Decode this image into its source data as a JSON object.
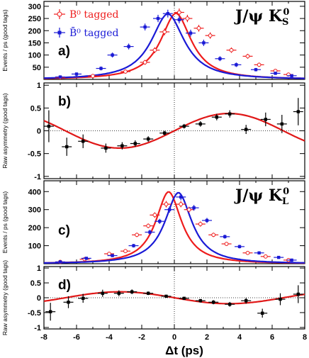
{
  "figure": {
    "xlabel": "Δt (ps)",
    "xticks": [
      -8,
      -6,
      -4,
      -2,
      0,
      2,
      4,
      6,
      8
    ]
  },
  "chart_data": [
    {
      "panel": "a)",
      "type": "scatter",
      "title": "J/ψ K_S^0",
      "channel_main": "J/ψ K",
      "channel_sub": "S",
      "channel_sup": "0",
      "ylabel": "Events / ps (good tags)",
      "xlim": [
        -8,
        8
      ],
      "ylim": [
        0,
        320
      ],
      "yticks": [
        50,
        100,
        150,
        200,
        250,
        300
      ],
      "legend": [
        {
          "label": "B⁰ tagged",
          "color": "#ee1c1c",
          "marker": "open-cross"
        },
        {
          "label": "B̄⁰ tagged",
          "color": "#1a1ad6",
          "marker": "filled-square"
        }
      ],
      "series": [
        {
          "name": "B⁰ tagged",
          "color": "#ee1c1c",
          "open": true,
          "points": [
            [
              -7,
              8,
              6
            ],
            [
              -5,
              14,
              6
            ],
            [
              -3,
              32,
              8
            ],
            [
              -1.8,
              70,
              10
            ],
            [
              -1.2,
              120,
              12
            ],
            [
              -0.6,
              195,
              14
            ],
            [
              0.3,
              275,
              16
            ],
            [
              0.8,
              250,
              15
            ],
            [
              1.5,
              210,
              14
            ],
            [
              2.2,
              180,
              13
            ],
            [
              3.5,
              120,
              11
            ],
            [
              4.5,
              95,
              10
            ],
            [
              5.2,
              60,
              9
            ],
            [
              6.2,
              35,
              7
            ],
            [
              7,
              20,
              6
            ]
          ]
        },
        {
          "name": "B̄⁰ tagged",
          "color": "#1a1ad6",
          "open": false,
          "points": [
            [
              -7,
              10,
              5
            ],
            [
              -6,
              22,
              6
            ],
            [
              -4.5,
              45,
              8
            ],
            [
              -3.8,
              100,
              10
            ],
            [
              -2.8,
              135,
              12
            ],
            [
              -1.8,
              215,
              14
            ],
            [
              -1,
              250,
              15
            ],
            [
              -0.4,
              270,
              16
            ],
            [
              0.3,
              245,
              15
            ],
            [
              1,
              190,
              14
            ],
            [
              1.8,
              150,
              13
            ],
            [
              2.8,
              85,
              10
            ],
            [
              3.8,
              60,
              9
            ],
            [
              5,
              40,
              7
            ],
            [
              6.2,
              25,
              6
            ],
            [
              7.2,
              15,
              5
            ]
          ]
        }
      ]
    },
    {
      "panel": "b)",
      "type": "scatter",
      "ylabel": "Raw asymmetry (good tags)",
      "xlim": [
        -8,
        8
      ],
      "ylim": [
        -1.05,
        1.05
      ],
      "yticks": [
        -1,
        -0.5,
        0,
        0.5,
        1
      ],
      "curve": "sin",
      "curve_amplitude": 0.38,
      "curve_freq": 0.47,
      "curve_sign": 1,
      "points": [
        [
          -7.7,
          0.1,
          0.35
        ],
        [
          -6.6,
          -0.35,
          0.2
        ],
        [
          -5.6,
          -0.23,
          0.15
        ],
        [
          -4.2,
          -0.38,
          0.1
        ],
        [
          -3.2,
          -0.33,
          0.08
        ],
        [
          -2.4,
          -0.28,
          0.07
        ],
        [
          -1.6,
          -0.18,
          0.06
        ],
        [
          -0.6,
          -0.05,
          0.05
        ],
        [
          0.6,
          0.1,
          0.05
        ],
        [
          1.6,
          0.15,
          0.06
        ],
        [
          2.6,
          0.3,
          0.07
        ],
        [
          3.4,
          0.37,
          0.08
        ],
        [
          4.4,
          0.03,
          0.1
        ],
        [
          5.6,
          0.25,
          0.15
        ],
        [
          6.6,
          0.15,
          0.2
        ],
        [
          7.6,
          0.42,
          0.3
        ]
      ]
    },
    {
      "panel": "c)",
      "type": "scatter",
      "title": "J/ψ K_L^0",
      "channel_main": "J/ψ K",
      "channel_sub": "L",
      "channel_sup": "0",
      "ylabel": "Events / ps (good tags)",
      "xlim": [
        -8,
        8
      ],
      "ylim": [
        0,
        460
      ],
      "yticks": [
        100,
        200,
        300,
        400
      ],
      "series": [
        {
          "name": "B⁰ tagged",
          "color": "#ee1c1c",
          "open": true,
          "points": [
            [
              -7,
              10,
              5
            ],
            [
              -5.5,
              25,
              7
            ],
            [
              -4,
              55,
              8
            ],
            [
              -3,
              70,
              9
            ],
            [
              -2.3,
              160,
              12
            ],
            [
              -1.6,
              210,
              13
            ],
            [
              -1.2,
              270,
              15
            ],
            [
              -0.5,
              330,
              18
            ],
            [
              0.4,
              330,
              17
            ],
            [
              0.9,
              300,
              16
            ],
            [
              1.6,
              220,
              14
            ],
            [
              2.4,
              160,
              12
            ],
            [
              3.2,
              110,
              10
            ],
            [
              4.5,
              60,
              8
            ],
            [
              5.6,
              40,
              7
            ],
            [
              7,
              20,
              5
            ]
          ]
        },
        {
          "name": "B̄⁰ tagged",
          "color": "#1a1ad6",
          "open": false,
          "points": [
            [
              -7,
              10,
              5
            ],
            [
              -5.4,
              30,
              7
            ],
            [
              -3.8,
              45,
              8
            ],
            [
              -2.5,
              100,
              10
            ],
            [
              -1.5,
              175,
              13
            ],
            [
              -0.9,
              235,
              14
            ],
            [
              -0.3,
              300,
              17
            ],
            [
              0.4,
              370,
              18
            ],
            [
              1.2,
              310,
              16
            ],
            [
              2,
              240,
              14
            ],
            [
              3.1,
              150,
              11
            ],
            [
              4,
              95,
              10
            ],
            [
              5.2,
              60,
              8
            ],
            [
              6.4,
              35,
              7
            ],
            [
              7.2,
              20,
              5
            ]
          ]
        }
      ]
    },
    {
      "panel": "d)",
      "type": "scatter",
      "ylabel": "Raw asymmetry (good tags)",
      "xlim": [
        -8,
        8
      ],
      "ylim": [
        -1.05,
        1.05
      ],
      "yticks": [
        -1,
        -0.5,
        0,
        0.5,
        1
      ],
      "curve": "sin",
      "curve_amplitude": 0.2,
      "curve_freq": 0.47,
      "curve_sign": -1,
      "points": [
        [
          -7.6,
          -0.47,
          0.3
        ],
        [
          -6.5,
          -0.15,
          0.2
        ],
        [
          -5.6,
          -0.02,
          0.15
        ],
        [
          -4.4,
          0.15,
          0.12
        ],
        [
          -3.4,
          0.15,
          0.1
        ],
        [
          -2.6,
          0.2,
          0.08
        ],
        [
          -1.6,
          0.15,
          0.06
        ],
        [
          -0.5,
          0.05,
          0.05
        ],
        [
          0.6,
          -0.02,
          0.05
        ],
        [
          1.6,
          -0.1,
          0.06
        ],
        [
          2.4,
          -0.15,
          0.07
        ],
        [
          3.4,
          -0.22,
          0.08
        ],
        [
          4.4,
          -0.1,
          0.1
        ],
        [
          5.4,
          -0.52,
          0.15
        ],
        [
          6.5,
          -0.05,
          0.2
        ],
        [
          7.6,
          0.12,
          0.3
        ]
      ]
    }
  ]
}
